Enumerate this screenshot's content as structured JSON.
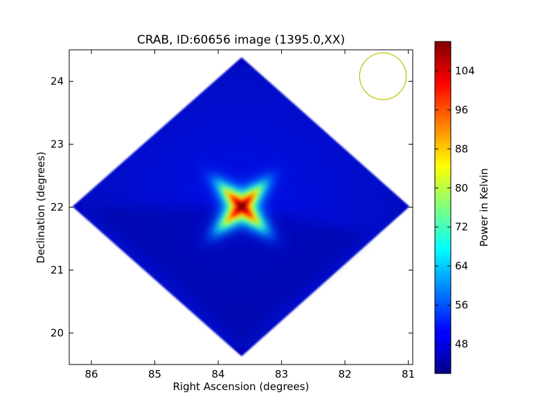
{
  "chart_data": {
    "type": "heatmap",
    "title": "CRAB, ID:60656 image (1395.0,XX)",
    "xlabel": "Right Ascension (degrees)",
    "ylabel": "Declination (degrees)",
    "xlim": [
      86.35,
      80.93
    ],
    "ylim": [
      19.5,
      24.5
    ],
    "x_ticks": [
      86,
      85,
      84,
      83,
      82,
      81
    ],
    "y_ticks": [
      20,
      21,
      22,
      23,
      24
    ],
    "x_direction": "reversed",
    "colormap": "jet",
    "grid": false,
    "footprint": {
      "shape": "rotated-square",
      "center_ra": 83.63,
      "center_dec": 22.01,
      "corners": [
        {
          "ra": 83.63,
          "dec": 24.38
        },
        {
          "ra": 80.98,
          "dec": 22.01
        },
        {
          "ra": 83.63,
          "dec": 19.63
        },
        {
          "ra": 86.3,
          "dec": 22.01
        }
      ]
    },
    "source": {
      "name": "CRAB",
      "ra": 83.63,
      "dec": 22.01,
      "peak_kelvin": 110
    },
    "background_kelvin": 46,
    "beam": {
      "ra": 81.4,
      "dec": 24.08,
      "radius_deg": 0.37,
      "color": "#bfbf00"
    },
    "colorbar": {
      "label": "Power in Kelvin",
      "min": 42,
      "max": 110,
      "ticks": [
        48,
        56,
        64,
        72,
        80,
        88,
        96,
        104
      ]
    }
  }
}
